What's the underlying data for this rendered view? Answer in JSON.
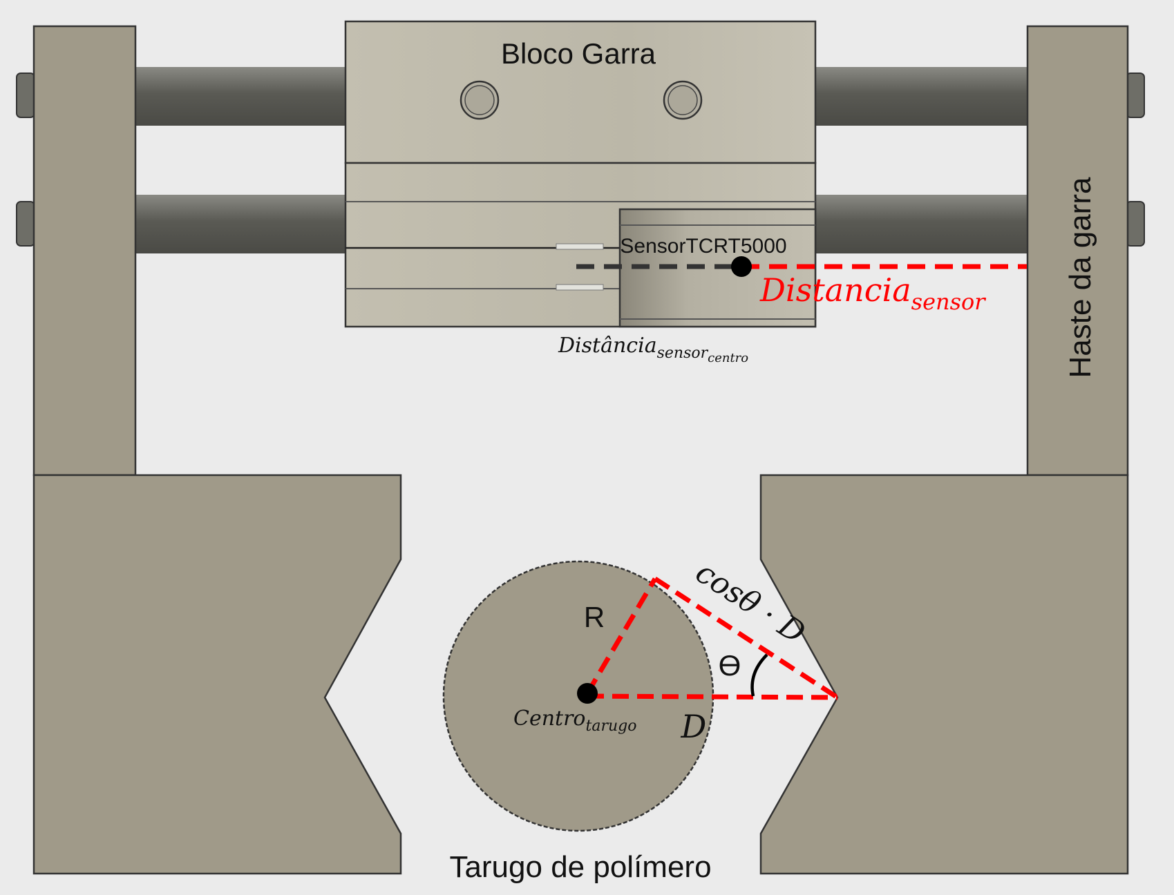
{
  "labels": {
    "bloco_garra": "Bloco Garra",
    "sensor": "SensorTCRT5000",
    "haste": "Haste da garra",
    "tarugo": "Tarugo de polímero",
    "radius": "R",
    "theta": "ϴ",
    "d": "D"
  },
  "equations": {
    "dist_sensor_base": "Distancia",
    "dist_sensor_sub": "sensor",
    "dist_centro_base": "Distância",
    "dist_centro_sub": "sensor",
    "dist_centro_subsub": "centro",
    "centro_base": "Centro",
    "centro_sub": "tarugo",
    "cos_expr": "cosθ · D"
  },
  "colors": {
    "background": "#ebebeb",
    "metal_body": "#a09a89",
    "block_light": "#bdb9aa",
    "rod_dark": "#5f5f58",
    "red_dash": "#ff0000",
    "black_dash": "#333333",
    "outline": "#333333"
  }
}
